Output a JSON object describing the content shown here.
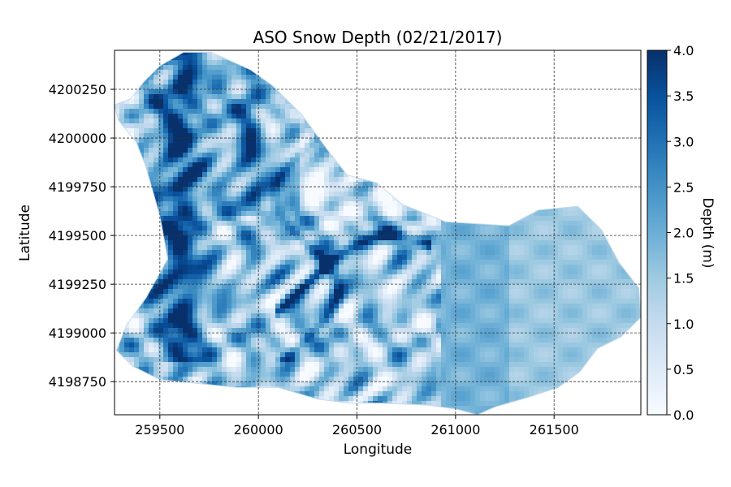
{
  "chart_data": {
    "type": "heatmap",
    "title": "ASO Snow Depth (02/21/2017)",
    "xlabel": "Longitude",
    "ylabel": "Latitude",
    "xlim": [
      259270,
      261940
    ],
    "ylim": [
      4198580,
      4200450
    ],
    "xticks": [
      259500,
      260000,
      260500,
      261000,
      261500
    ],
    "yticks": [
      4198750,
      4199000,
      4199250,
      4199500,
      4199750,
      4200000,
      4200250
    ],
    "grid": true,
    "grid_style": "dashed",
    "colormap": {
      "name": "Blues",
      "stops": [
        "#f7fbff",
        "#deebf7",
        "#c6dbef",
        "#9ecae1",
        "#6baed6",
        "#4292c6",
        "#2171b5",
        "#08519c",
        "#08306b"
      ]
    },
    "colorbar": {
      "label": "Depth (m)",
      "vmin": 0.0,
      "vmax": 4.0,
      "ticks": [
        "0.0",
        "0.5",
        "1.0",
        "1.5",
        "2.0",
        "2.5",
        "3.0",
        "3.5",
        "4.0"
      ]
    },
    "basin_outline": [
      [
        259350,
        4200200
      ],
      [
        259420,
        4200290
      ],
      [
        259500,
        4200370
      ],
      [
        259620,
        4200440
      ],
      [
        259760,
        4200440
      ],
      [
        259960,
        4200350
      ],
      [
        260070,
        4200270
      ],
      [
        260220,
        4200120
      ],
      [
        260350,
        4199940
      ],
      [
        260450,
        4199810
      ],
      [
        260600,
        4199770
      ],
      [
        260730,
        4199660
      ],
      [
        260950,
        4199570
      ],
      [
        261270,
        4199550
      ],
      [
        261420,
        4199630
      ],
      [
        261620,
        4199650
      ],
      [
        261740,
        4199530
      ],
      [
        261830,
        4199360
      ],
      [
        261930,
        4199230
      ],
      [
        261940,
        4199080
      ],
      [
        261840,
        4198980
      ],
      [
        261720,
        4198920
      ],
      [
        261630,
        4198800
      ],
      [
        261520,
        4198720
      ],
      [
        261370,
        4198670
      ],
      [
        261200,
        4198620
      ],
      [
        261110,
        4198580
      ],
      [
        261000,
        4198610
      ],
      [
        260850,
        4198630
      ],
      [
        260620,
        4198640
      ],
      [
        260460,
        4198640
      ],
      [
        260300,
        4198660
      ],
      [
        260100,
        4198720
      ],
      [
        259890,
        4198720
      ],
      [
        259700,
        4198740
      ],
      [
        259500,
        4198760
      ],
      [
        259360,
        4198830
      ],
      [
        259280,
        4198910
      ],
      [
        259330,
        4199040
      ],
      [
        259430,
        4199180
      ],
      [
        259540,
        4199380
      ],
      [
        259500,
        4199600
      ],
      [
        259430,
        4199850
      ],
      [
        259380,
        4199980
      ],
      [
        259290,
        4200090
      ],
      [
        259270,
        4200170
      ]
    ]
  }
}
